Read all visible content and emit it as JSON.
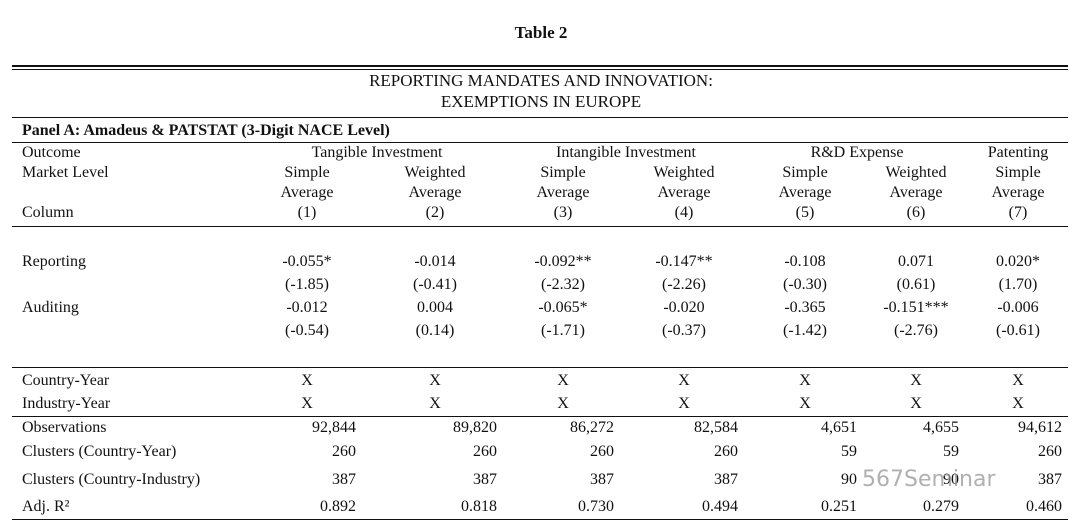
{
  "title": "Table 2",
  "heading": [
    "REPORTING MANDATES AND INNOVATION:",
    "EXEMPTIONS IN EUROPE"
  ],
  "panel": "Panel A: Amadeus & PATSTAT (3-Digit NACE Level)",
  "header": {
    "outcome_label": "Outcome",
    "outcomes": [
      "Tangible Investment",
      "Intangible Investment",
      "R&D Expense",
      "Patenting"
    ],
    "market_label": "Market Level",
    "market": [
      [
        "Simple",
        "Average"
      ],
      [
        "Weighted",
        "Average"
      ],
      [
        "Simple",
        "Average"
      ],
      [
        "Weighted",
        "Average"
      ],
      [
        "Simple",
        "Average"
      ],
      [
        "Weighted",
        "Average"
      ],
      [
        "Simple",
        "Average"
      ]
    ],
    "column_label": "Column",
    "columns": [
      "(1)",
      "(2)",
      "(3)",
      "(4)",
      "(5)",
      "(6)",
      "(7)"
    ]
  },
  "coef_rows": [
    {
      "label": "Reporting",
      "values": [
        "-0.055*",
        "-0.014",
        "-0.092**",
        "-0.147**",
        "-0.108",
        "0.071",
        "0.020*"
      ],
      "tstats": [
        "(-1.85)",
        "(-0.41)",
        "(-2.32)",
        "(-2.26)",
        "(-0.30)",
        "(0.61)",
        "(1.70)"
      ]
    },
    {
      "label": "Auditing",
      "values": [
        "-0.012",
        "0.004",
        "-0.065*",
        "-0.020",
        "-0.365",
        "-0.151***",
        "-0.006"
      ],
      "tstats": [
        "(-0.54)",
        "(0.14)",
        "(-1.71)",
        "(-0.37)",
        "(-1.42)",
        "(-2.76)",
        "(-0.61)"
      ]
    }
  ],
  "fe_rows": [
    {
      "label": "Country-Year",
      "values": [
        "X",
        "X",
        "X",
        "X",
        "X",
        "X",
        "X"
      ]
    },
    {
      "label": "Industry-Year",
      "values": [
        "X",
        "X",
        "X",
        "X",
        "X",
        "X",
        "X"
      ]
    }
  ],
  "stat_rows": [
    {
      "label": "Observations",
      "values": [
        "92,844",
        "89,820",
        "86,272",
        "82,584",
        "4,651",
        "4,655",
        "94,612"
      ]
    },
    {
      "label": "Clusters (Country-Year)",
      "values": [
        "260",
        "260",
        "260",
        "260",
        "59",
        "59",
        "260"
      ]
    },
    {
      "label": "Clusters (Country-Industry)",
      "values": [
        "387",
        "387",
        "387",
        "387",
        "90",
        "90",
        "387"
      ]
    },
    {
      "label": "Adj. R²",
      "values": [
        "0.892",
        "0.818",
        "0.730",
        "0.494",
        "0.251",
        "0.279",
        "0.460"
      ]
    }
  ],
  "watermark": "567Seminar"
}
